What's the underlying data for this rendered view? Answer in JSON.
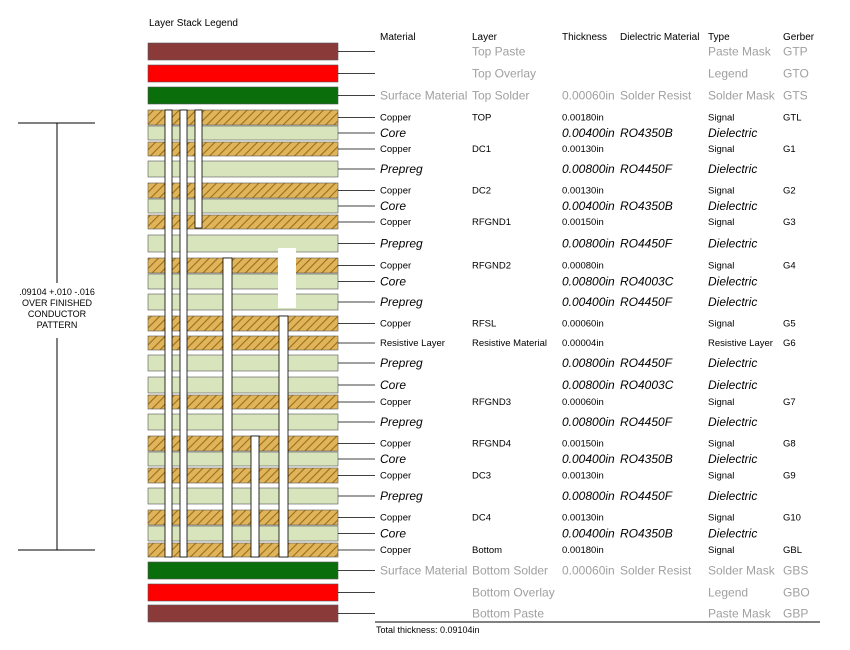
{
  "title": "Layer Stack Legend",
  "headers": {
    "material": "Material",
    "layer": "Layer",
    "thickness": "Thickness",
    "dielectric_material": "Dielectric Material",
    "type": "Type",
    "gerber": "Gerber"
  },
  "dimension_note": [
    ".09104 +.010 -.016",
    "OVER FINISHED",
    "CONDUCTOR",
    "PATTERN"
  ],
  "total_thickness": "Total thickness: 0.09104in",
  "colors": {
    "paste": "#8b3a3a",
    "overlay": "#ff0000",
    "solder": "#0a6e0a",
    "copper": "#e0b55a",
    "copper_hatch": "#9a6d1c",
    "dielectric": "#d8e4bc",
    "via": "#ffffff",
    "grey_text": "#a0a0a0"
  },
  "layers": [
    {
      "kind": "paste",
      "material": "",
      "layer": "Top Paste",
      "thickness": "",
      "dielectric": "",
      "type": "Paste Mask",
      "gerber": "GTP"
    },
    {
      "kind": "overlay",
      "material": "",
      "layer": "Top Overlay",
      "thickness": "",
      "dielectric": "",
      "type": "Legend",
      "gerber": "GTO"
    },
    {
      "kind": "solder",
      "material": "Surface Material",
      "layer": "Top Solder",
      "thickness": "0.00060in",
      "dielectric": "Solder Resist",
      "type": "Solder Mask",
      "gerber": "GTS"
    },
    {
      "kind": "copper",
      "material": "Copper",
      "layer": "TOP",
      "thickness": "0.00180in",
      "dielectric": "",
      "type": "Signal",
      "gerber": "GTL"
    },
    {
      "kind": "dielectric",
      "material": "Core",
      "layer": "",
      "thickness": "0.00400in",
      "dielectric": "RO4350B",
      "type": "Dielectric",
      "gerber": ""
    },
    {
      "kind": "copper",
      "material": "Copper",
      "layer": "DC1",
      "thickness": "0.00130in",
      "dielectric": "",
      "type": "Signal",
      "gerber": "G1"
    },
    {
      "kind": "dielectric",
      "material": "Prepreg",
      "layer": "",
      "thickness": "0.00800in",
      "dielectric": "RO4450F",
      "type": "Dielectric",
      "gerber": ""
    },
    {
      "kind": "copper",
      "material": "Copper",
      "layer": "DC2",
      "thickness": "0.00130in",
      "dielectric": "",
      "type": "Signal",
      "gerber": "G2"
    },
    {
      "kind": "dielectric",
      "material": "Core",
      "layer": "",
      "thickness": "0.00400in",
      "dielectric": "RO4350B",
      "type": "Dielectric",
      "gerber": ""
    },
    {
      "kind": "copper",
      "material": "Copper",
      "layer": "RFGND1",
      "thickness": "0.00150in",
      "dielectric": "",
      "type": "Signal",
      "gerber": "G3"
    },
    {
      "kind": "dielectric",
      "material": "Prepreg",
      "layer": "",
      "thickness": "0.00800in",
      "dielectric": "RO4450F",
      "type": "Dielectric",
      "gerber": ""
    },
    {
      "kind": "copper",
      "material": "Copper",
      "layer": "RFGND2",
      "thickness": "0.00080in",
      "dielectric": "",
      "type": "Signal",
      "gerber": "G4"
    },
    {
      "kind": "dielectric",
      "material": "Core",
      "layer": "",
      "thickness": "0.00800in",
      "dielectric": "RO4003C",
      "type": "Dielectric",
      "gerber": ""
    },
    {
      "kind": "dielectric",
      "material": "Prepreg",
      "layer": "",
      "thickness": "0.00400in",
      "dielectric": "RO4450F",
      "type": "Dielectric",
      "gerber": ""
    },
    {
      "kind": "copper",
      "material": "Copper",
      "layer": "RFSL",
      "thickness": "0.00060in",
      "dielectric": "",
      "type": "Signal",
      "gerber": "G5"
    },
    {
      "kind": "copper",
      "material": "Resistive Layer",
      "layer": "Resistive Material",
      "thickness": "0.00004in",
      "dielectric": "",
      "type": "Resistive Layer",
      "gerber": "G6"
    },
    {
      "kind": "dielectric",
      "material": "Prepreg",
      "layer": "",
      "thickness": "0.00800in",
      "dielectric": "RO4450F",
      "type": "Dielectric",
      "gerber": ""
    },
    {
      "kind": "dielectric",
      "material": "Core",
      "layer": "",
      "thickness": "0.00800in",
      "dielectric": "RO4003C",
      "type": "Dielectric",
      "gerber": ""
    },
    {
      "kind": "copper",
      "material": "Copper",
      "layer": "RFGND3",
      "thickness": "0.00060in",
      "dielectric": "",
      "type": "Signal",
      "gerber": "G7"
    },
    {
      "kind": "dielectric",
      "material": "Prepreg",
      "layer": "",
      "thickness": "0.00800in",
      "dielectric": "RO4450F",
      "type": "Dielectric",
      "gerber": ""
    },
    {
      "kind": "copper",
      "material": "Copper",
      "layer": "RFGND4",
      "thickness": "0.00150in",
      "dielectric": "",
      "type": "Signal",
      "gerber": "G8"
    },
    {
      "kind": "dielectric",
      "material": "Core",
      "layer": "",
      "thickness": "0.00400in",
      "dielectric": "RO4350B",
      "type": "Dielectric",
      "gerber": ""
    },
    {
      "kind": "copper",
      "material": "Copper",
      "layer": "DC3",
      "thickness": "0.00130in",
      "dielectric": "",
      "type": "Signal",
      "gerber": "G9"
    },
    {
      "kind": "dielectric",
      "material": "Prepreg",
      "layer": "",
      "thickness": "0.00800in",
      "dielectric": "RO4450F",
      "type": "Dielectric",
      "gerber": ""
    },
    {
      "kind": "copper",
      "material": "Copper",
      "layer": "DC4",
      "thickness": "0.00130in",
      "dielectric": "",
      "type": "Signal",
      "gerber": "G10"
    },
    {
      "kind": "dielectric",
      "material": "Core",
      "layer": "",
      "thickness": "0.00400in",
      "dielectric": "RO4350B",
      "type": "Dielectric",
      "gerber": ""
    },
    {
      "kind": "copper",
      "material": "Copper",
      "layer": "Bottom",
      "thickness": "0.00180in",
      "dielectric": "",
      "type": "Signal",
      "gerber": "GBL"
    },
    {
      "kind": "solder",
      "material": "Surface Material",
      "layer": "Bottom Solder",
      "thickness": "0.00060in",
      "dielectric": "Solder Resist",
      "type": "Solder Mask",
      "gerber": "GBS"
    },
    {
      "kind": "overlay",
      "material": "",
      "layer": "Bottom Overlay",
      "thickness": "",
      "dielectric": "",
      "type": "Legend",
      "gerber": "GBO"
    },
    {
      "kind": "paste",
      "material": "",
      "layer": "Bottom Paste",
      "thickness": "",
      "dielectric": "",
      "type": "Paste Mask",
      "gerber": "GBP"
    }
  ]
}
